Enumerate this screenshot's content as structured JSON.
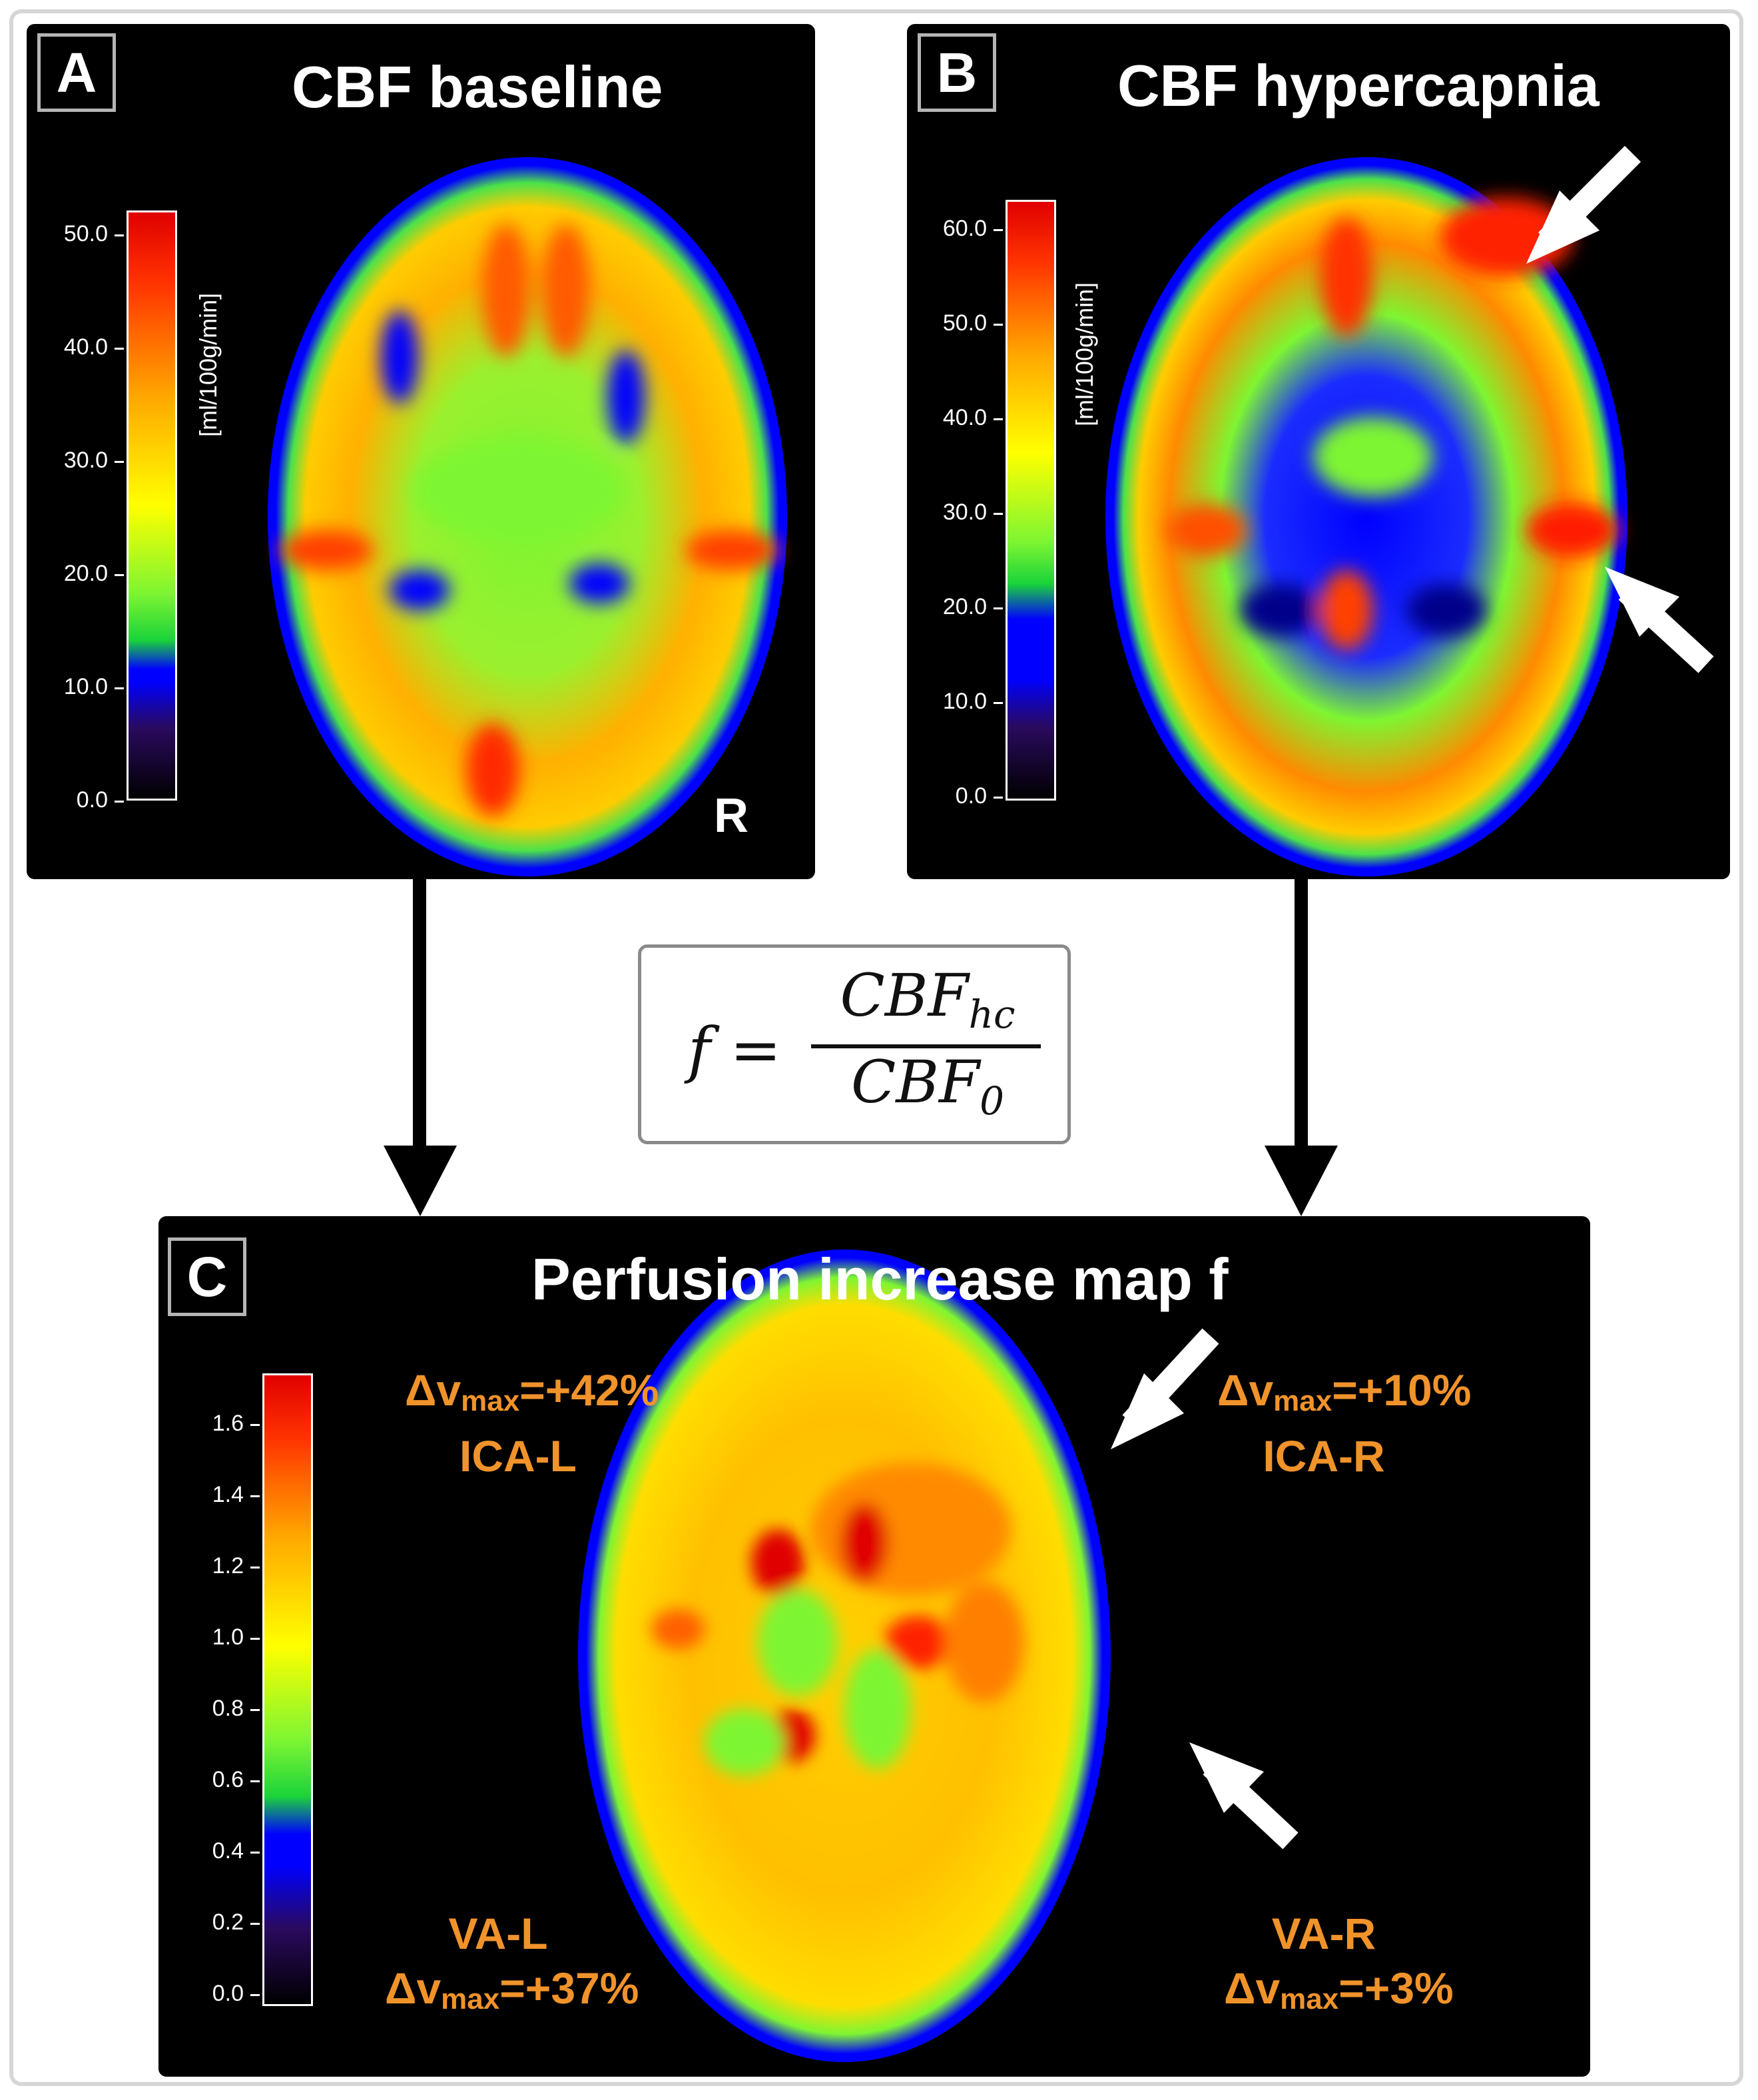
{
  "panels": {
    "a": {
      "letter": "A",
      "title": "CBF baseline",
      "orientation": "R",
      "colorbar": {
        "unit": "[ml/100g/min]",
        "ticks": [
          "50.0",
          "40.0",
          "30.0",
          "20.0",
          "10.0",
          "0.0"
        ]
      }
    },
    "b": {
      "letter": "B",
      "title": "CBF hypercapnia",
      "colorbar": {
        "unit": "[ml/100g/min]",
        "ticks": [
          "60.0",
          "50.0",
          "40.0",
          "30.0",
          "20.0",
          "10.0",
          "0.0"
        ]
      }
    },
    "c": {
      "letter": "C",
      "title": "Perfusion increase map f",
      "colorbar": {
        "ticks": [
          "1.6",
          "1.4",
          "1.2",
          "1.0",
          "0.8",
          "0.6",
          "0.4",
          "0.2",
          "0.0"
        ]
      },
      "labels": {
        "ica_l": {
          "delta": "Δv",
          "sub": "max",
          "value": "=+42%",
          "name": "ICA-L"
        },
        "ica_r": {
          "delta": "Δv",
          "sub": "max",
          "value": "=+10%",
          "name": "ICA-R"
        },
        "va_l": {
          "delta": "Δv",
          "sub": "max",
          "value": "=+37%",
          "name": "VA-L"
        },
        "va_r": {
          "delta": "Δv",
          "sub": "max",
          "value": "=+3%",
          "name": "VA-R"
        }
      }
    }
  },
  "formula": {
    "lhs": "f =",
    "numerator": "CBF",
    "numerator_sub": "hc",
    "denominator": "CBF",
    "denominator_sub": "0"
  },
  "colors": {
    "panel_bg": "#000000",
    "label_orange": "#f0932b",
    "arrow_black": "#000000",
    "arrow_white": "#ffffff",
    "colormap": [
      "#000000",
      "#2a0a5e",
      "#0000ff",
      "#1ad33a",
      "#7ef532",
      "#ffff00",
      "#ffaa00",
      "#ff3300",
      "#e00000"
    ]
  }
}
